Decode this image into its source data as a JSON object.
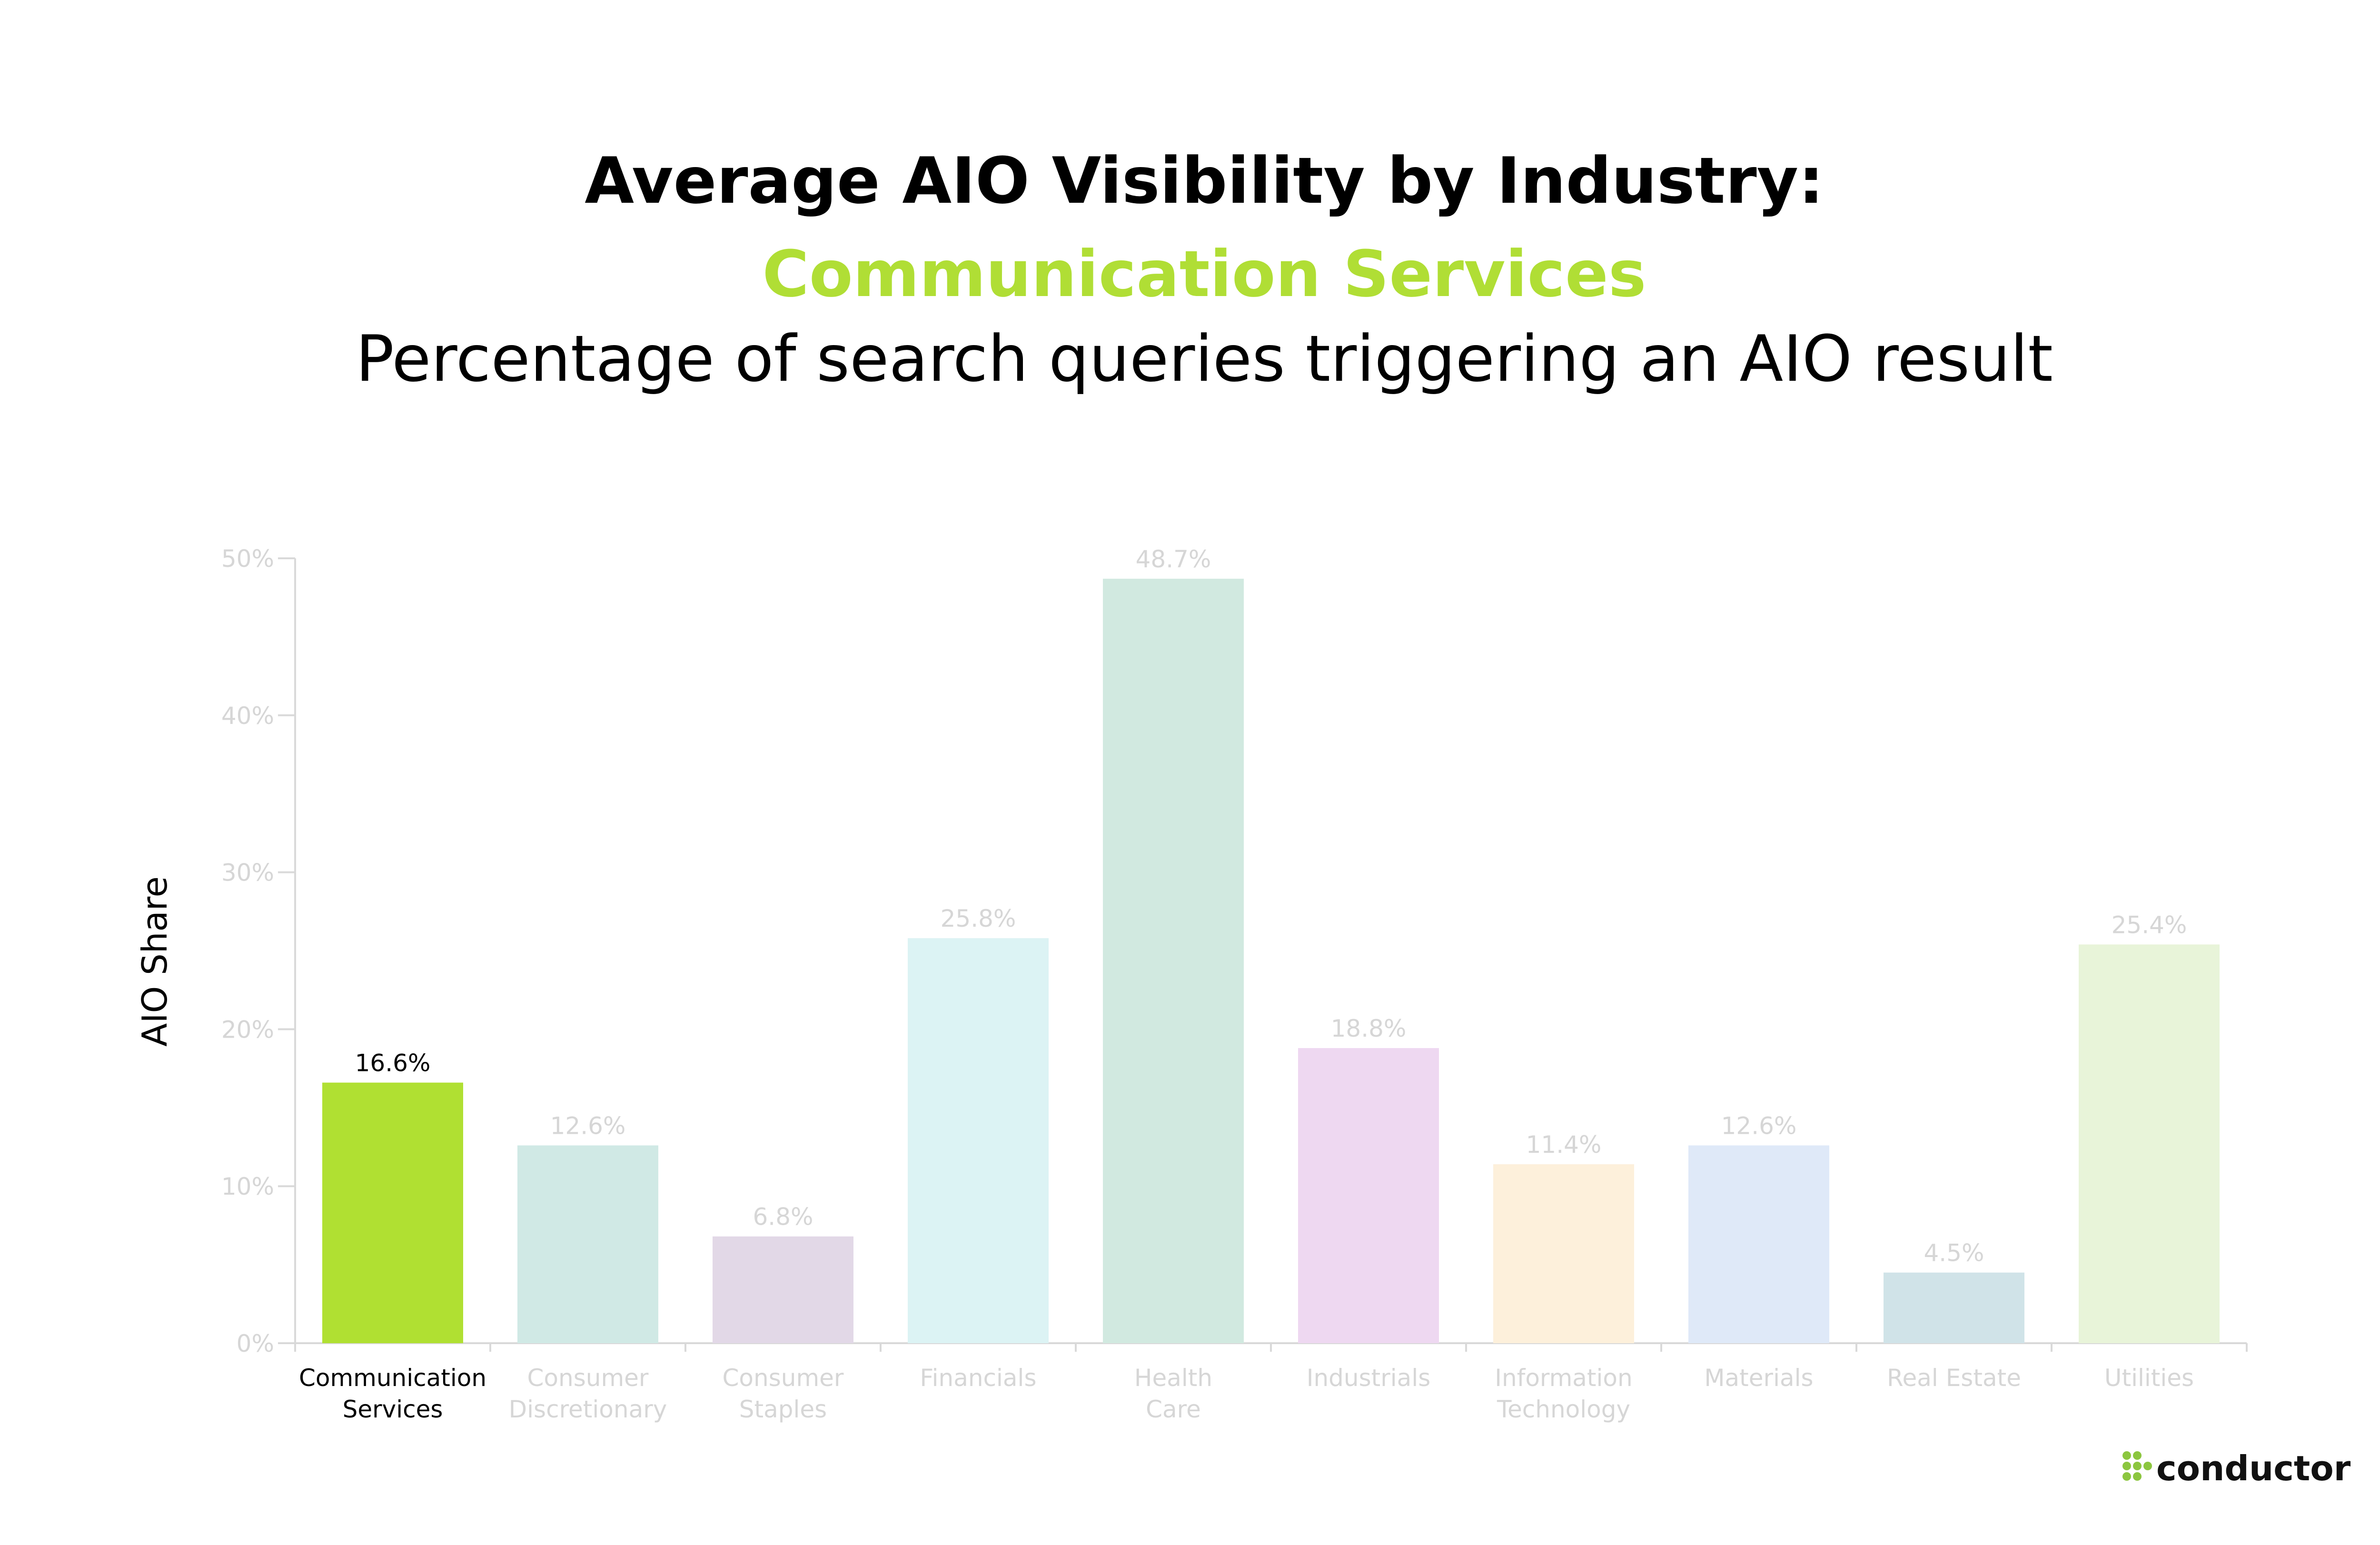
{
  "chart_data": {
    "type": "bar",
    "title": "Average AIO Visibility by Industry:",
    "subtitle_highlight": "Communication Services",
    "subtitle": "Percentage of search queries triggering an AIO result",
    "ylabel": "AIO Share",
    "xlabel": "",
    "ylim": [
      0,
      50
    ],
    "yticks": [
      "0%",
      "10%",
      "20%",
      "30%",
      "40%",
      "50%"
    ],
    "ytick_values": [
      0,
      10,
      20,
      30,
      40,
      50
    ],
    "grid": false,
    "highlight_index": 0,
    "categories": [
      [
        "Communication",
        "Services"
      ],
      [
        "Consumer",
        "Discretionary"
      ],
      [
        "Consumer",
        "Staples"
      ],
      [
        "Financials"
      ],
      [
        "Health",
        "Care"
      ],
      [
        "Industrials"
      ],
      [
        "Information",
        "Technology"
      ],
      [
        "Materials"
      ],
      [
        "Real Estate"
      ],
      [
        "Utilities"
      ]
    ],
    "values": [
      16.6,
      12.6,
      6.8,
      25.8,
      48.7,
      18.8,
      11.4,
      12.6,
      4.5,
      25.4
    ],
    "value_labels": [
      "16.6%",
      "12.6%",
      "6.8%",
      "25.8%",
      "48.7%",
      "18.8%",
      "11.4%",
      "12.6%",
      "4.5%",
      "25.4%"
    ],
    "colors": [
      "#b0e032",
      "#d0e9e5",
      "#e2d8e7",
      "#dcf3f4",
      "#d1e9e0",
      "#eed8f1",
      "#fdf0db",
      "#dfe9f8",
      "#d0e3e8",
      "#e8f4d9"
    ]
  },
  "brand": {
    "logo_text": "conductor",
    "logo_color": "#8cc63f"
  },
  "colors": {
    "accent": "#b0de35",
    "muted_label": "#d6d6d6",
    "axis_line": "#d9d9d9",
    "highlight_label": "#000000"
  }
}
